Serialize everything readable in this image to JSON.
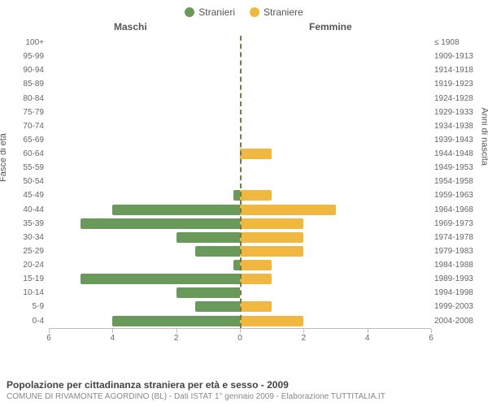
{
  "legend": {
    "male_label": "Stranieri",
    "female_label": "Straniere"
  },
  "headers": {
    "male": "Maschi",
    "female": "Femmine"
  },
  "axis_titles": {
    "left": "Fasce di età",
    "right": "Anni di nascita"
  },
  "chart": {
    "type": "population-pyramid",
    "xmax": 6,
    "xticks": [
      6,
      4,
      2,
      0,
      2,
      4,
      6
    ],
    "male_color": "#6a9a5b",
    "female_color": "#f0b840",
    "background_color": "#ffffff",
    "center_line_color": "#7a7a3a",
    "axis_color": "#bbbbbb",
    "label_fontsize": 10,
    "header_fontsize": 12,
    "rows": [
      {
        "age": "100+",
        "birth": "≤ 1908",
        "m": 0,
        "f": 0
      },
      {
        "age": "95-99",
        "birth": "1909-1913",
        "m": 0,
        "f": 0
      },
      {
        "age": "90-94",
        "birth": "1914-1918",
        "m": 0,
        "f": 0
      },
      {
        "age": "85-89",
        "birth": "1919-1923",
        "m": 0,
        "f": 0
      },
      {
        "age": "80-84",
        "birth": "1924-1928",
        "m": 0,
        "f": 0
      },
      {
        "age": "75-79",
        "birth": "1929-1933",
        "m": 0,
        "f": 0
      },
      {
        "age": "70-74",
        "birth": "1934-1938",
        "m": 0,
        "f": 0
      },
      {
        "age": "65-69",
        "birth": "1939-1943",
        "m": 0,
        "f": 0
      },
      {
        "age": "60-64",
        "birth": "1944-1948",
        "m": 0,
        "f": 1
      },
      {
        "age": "55-59",
        "birth": "1949-1953",
        "m": 0,
        "f": 0
      },
      {
        "age": "50-54",
        "birth": "1954-1958",
        "m": 0,
        "f": 0
      },
      {
        "age": "45-49",
        "birth": "1959-1963",
        "m": 0.2,
        "f": 1
      },
      {
        "age": "40-44",
        "birth": "1964-1968",
        "m": 4,
        "f": 3
      },
      {
        "age": "35-39",
        "birth": "1969-1973",
        "m": 5,
        "f": 2
      },
      {
        "age": "30-34",
        "birth": "1974-1978",
        "m": 2,
        "f": 2
      },
      {
        "age": "25-29",
        "birth": "1979-1983",
        "m": 1.4,
        "f": 2
      },
      {
        "age": "20-24",
        "birth": "1984-1988",
        "m": 0.2,
        "f": 1
      },
      {
        "age": "15-19",
        "birth": "1989-1993",
        "m": 5,
        "f": 1
      },
      {
        "age": "10-14",
        "birth": "1994-1998",
        "m": 2,
        "f": 0
      },
      {
        "age": "5-9",
        "birth": "1999-2003",
        "m": 1.4,
        "f": 1
      },
      {
        "age": "0-4",
        "birth": "2004-2008",
        "m": 4,
        "f": 2
      }
    ]
  },
  "footer": {
    "title": "Popolazione per cittadinanza straniera per età e sesso - 2009",
    "subtitle": "COMUNE DI RIVAMONTE AGORDINO (BL) - Dati ISTAT 1° gennaio 2009 - Elaborazione TUTTITALIA.IT"
  }
}
